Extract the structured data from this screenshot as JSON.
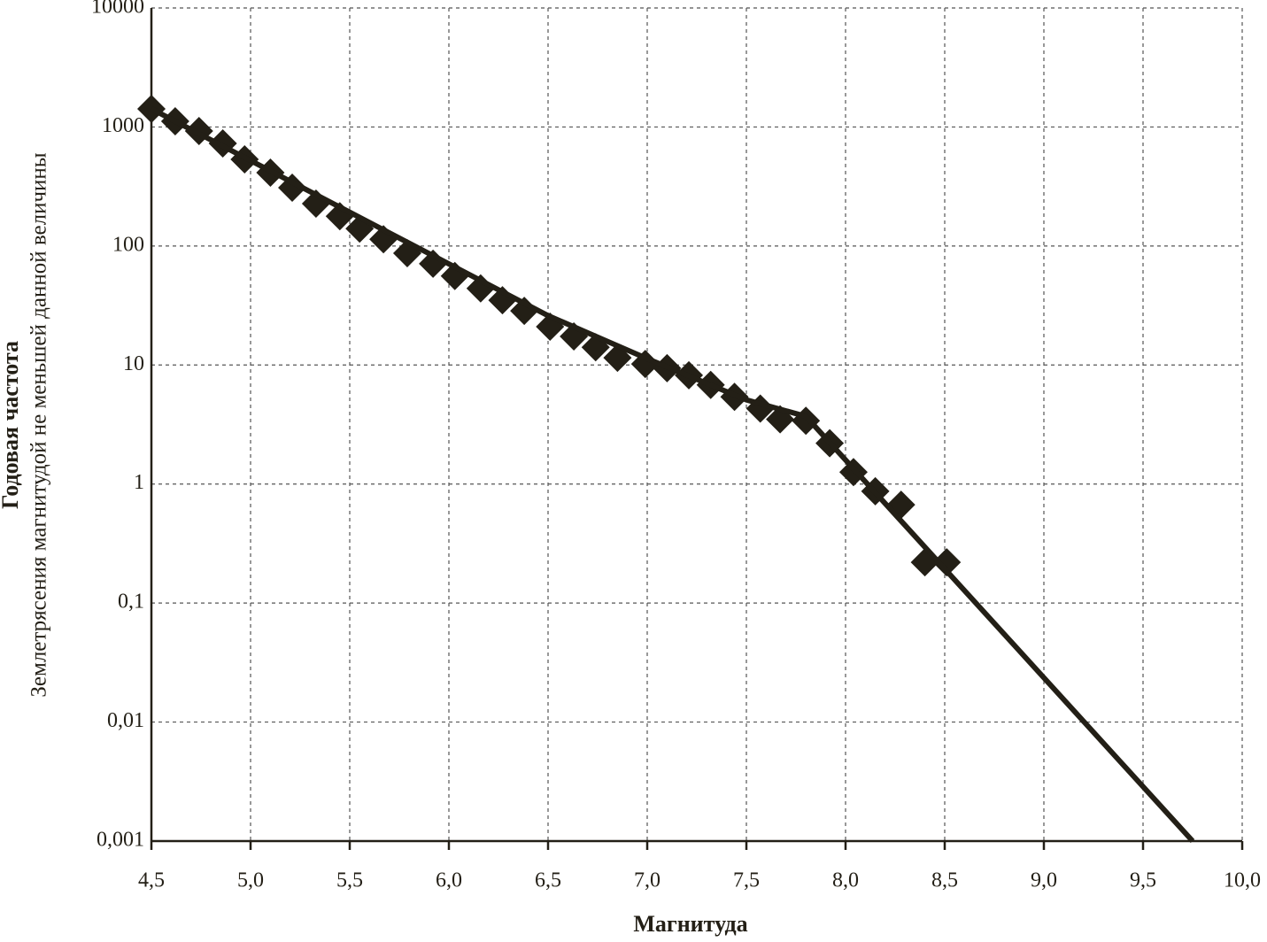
{
  "chart_data": {
    "type": "scatter",
    "x_label": "Магнитуда",
    "y_label": "Годовая частота",
    "y_sublabel": "Землетрясения магнитудой не меньшей данной величины",
    "log_y": true,
    "grid": true,
    "color": "#231f16",
    "xlim": [
      4.5,
      10.0
    ],
    "xticks": [
      {
        "value": 4.5,
        "label": "4,5"
      },
      {
        "value": 5.0,
        "label": "5,0"
      },
      {
        "value": 5.5,
        "label": "5,5"
      },
      {
        "value": 6.0,
        "label": "6,0"
      },
      {
        "value": 6.5,
        "label": "6,5"
      },
      {
        "value": 7.0,
        "label": "7,0"
      },
      {
        "value": 7.5,
        "label": "7,5"
      },
      {
        "value": 8.0,
        "label": "8,0"
      },
      {
        "value": 8.5,
        "label": "8,5"
      },
      {
        "value": 9.0,
        "label": "9,0"
      },
      {
        "value": 9.5,
        "label": "9,5"
      },
      {
        "value": 10.0,
        "label": "10,0"
      }
    ],
    "ylim": [
      0.001,
      10000
    ],
    "yticks": [
      10000,
      1000,
      100,
      10,
      1,
      {
        "value": 0.1,
        "label": "0,1"
      },
      {
        "value": 0.01,
        "label": "0,01"
      },
      {
        "value": 0.001,
        "label": "0,001"
      }
    ],
    "series": [
      {
        "type": "scatter",
        "x": [
          4.5,
          4.62,
          4.74,
          4.86,
          4.97,
          5.1,
          5.21,
          5.33,
          5.45,
          5.55,
          5.67,
          5.79,
          5.92,
          6.03,
          6.16,
          6.27,
          6.38,
          6.51,
          6.63,
          6.74,
          6.85,
          6.99,
          7.1,
          7.21,
          7.32,
          7.44,
          7.57,
          7.67,
          7.8,
          7.92,
          8.04,
          8.15,
          8.28,
          8.4,
          8.51
        ],
        "values": [
          1420,
          1117,
          925,
          728,
          535,
          413,
          309,
          227,
          178,
          140,
          114,
          87,
          71,
          56,
          44,
          35,
          28.5,
          21,
          17.4,
          14.1,
          11.5,
          10.2,
          9.4,
          8.2,
          6.8,
          5.4,
          4.3,
          3.5,
          3.4,
          2.2,
          1.26,
          0.87,
          0.67,
          0.22,
          0.22
        ]
      },
      {
        "type": "line",
        "x": [
          4.5,
          6.5,
          7.0,
          7.5,
          7.8,
          9.75
        ],
        "values": [
          1420,
          26,
          11.3,
          5.1,
          3.7,
          0.001
        ]
      }
    ]
  }
}
